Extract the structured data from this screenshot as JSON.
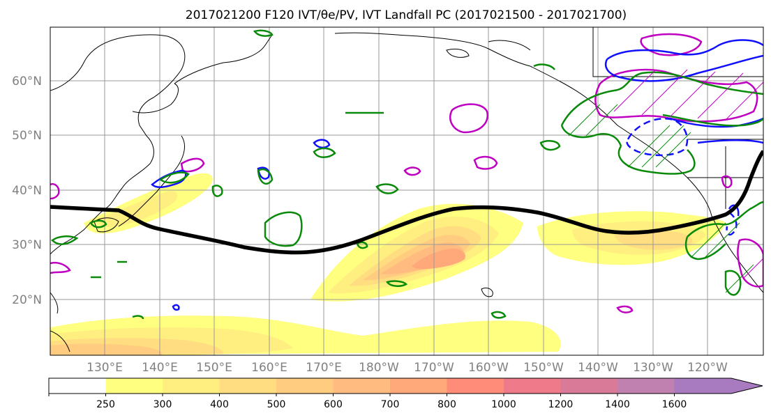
{
  "title": "2017021200 F120 IVT/θe/PV, IVT Landfall PC (2017021500 - 2017021700)",
  "lat_labels": [
    "60°N",
    "50°N",
    "40°N",
    "30°N",
    "20°N"
  ],
  "lon_labels": [
    "130°E",
    "140°E",
    "150°E",
    "160°E",
    "170°E",
    "180°W",
    "170°W",
    "160°W",
    "150°W",
    "140°W",
    "130°W",
    "120°W"
  ],
  "colorbar": {
    "ticks": [
      "250",
      "300",
      "400",
      "500",
      "600",
      "700",
      "800",
      "1000",
      "1200",
      "1400",
      "1600"
    ],
    "colors": [
      "#ffffff",
      "#ffff80",
      "#ffee80",
      "#ffdd80",
      "#ffcc80",
      "#ffbb80",
      "#ffa87a",
      "#ff8c78",
      "#ee7a8a",
      "#d97a99",
      "#c080b0",
      "#a87ac0"
    ]
  },
  "colors": {
    "pc_line": "#000000",
    "contour_green": "#0a8a0a",
    "contour_blue": "#1010ff",
    "contour_magenta": "#c000c0",
    "grid": "#999999",
    "coast": "#000000"
  }
}
